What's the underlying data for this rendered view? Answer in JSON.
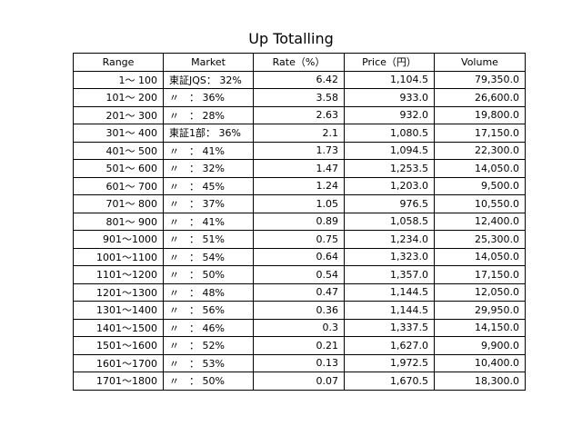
{
  "chart_data": {
    "type": "table",
    "title": "Up Totalling",
    "columns": [
      "Range",
      "Market",
      "Rate（%）",
      "Price（円）",
      "Volume"
    ],
    "rows": [
      [
        "1～ 100",
        "東証JQS： 32%",
        "6.42",
        "1,104.5",
        "79,350.0"
      ],
      [
        "101～ 200",
        "〃　： 36%",
        "3.58",
        "933.0",
        "26,600.0"
      ],
      [
        "201～ 300",
        "〃　： 28%",
        "2.63",
        "932.0",
        "19,800.0"
      ],
      [
        "301～ 400",
        "東証1部： 36%",
        "2.1",
        "1,080.5",
        "17,150.0"
      ],
      [
        "401～ 500",
        "〃　： 41%",
        "1.73",
        "1,094.5",
        "22,300.0"
      ],
      [
        "501～ 600",
        "〃　： 32%",
        "1.47",
        "1,253.5",
        "14,050.0"
      ],
      [
        "601～ 700",
        "〃　： 45%",
        "1.24",
        "1,203.0",
        "9,500.0"
      ],
      [
        "701～ 800",
        "〃　： 37%",
        "1.05",
        "976.5",
        "10,550.0"
      ],
      [
        "801～ 900",
        "〃　： 41%",
        "0.89",
        "1,058.5",
        "12,400.0"
      ],
      [
        "901～1000",
        "〃　： 51%",
        "0.75",
        "1,234.0",
        "25,300.0"
      ],
      [
        "1001～1100",
        "〃　： 54%",
        "0.64",
        "1,323.0",
        "14,050.0"
      ],
      [
        "1101～1200",
        "〃　： 50%",
        "0.54",
        "1,357.0",
        "17,150.0"
      ],
      [
        "1201～1300",
        "〃　： 48%",
        "0.47",
        "1,144.5",
        "12,050.0"
      ],
      [
        "1301～1400",
        "〃　： 56%",
        "0.36",
        "1,144.5",
        "29,950.0"
      ],
      [
        "1401～1500",
        "〃　： 46%",
        "0.3",
        "1,337.5",
        "14,150.0"
      ],
      [
        "1501～1600",
        "〃　： 52%",
        "0.21",
        "1,627.0",
        "9,900.0"
      ],
      [
        "1601～1700",
        "〃　： 53%",
        "0.13",
        "1,972.5",
        "10,400.0"
      ],
      [
        "1701～1800",
        "〃　： 50%",
        "0.07",
        "1,670.5",
        "18,300.0"
      ]
    ]
  }
}
